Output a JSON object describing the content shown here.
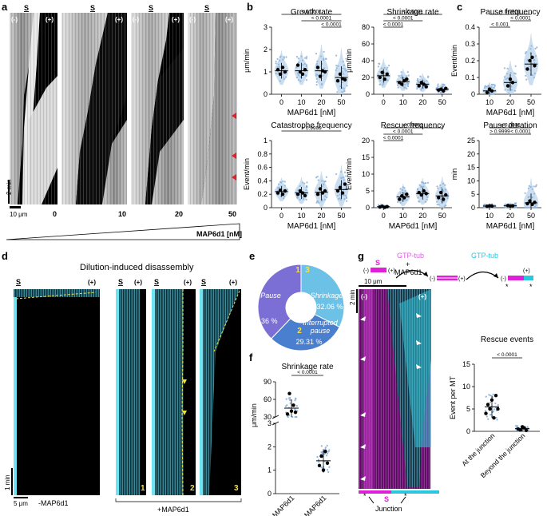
{
  "panel_labels": [
    "a",
    "b",
    "c",
    "d",
    "e",
    "f",
    "g"
  ],
  "panel_a": {
    "seed_label": "S",
    "minus_end": "(-)",
    "plus_end": "(+)",
    "time_scale": "2 min",
    "space_scale": "10 μm",
    "conditions": [
      "0",
      "10",
      "20",
      "50"
    ],
    "axis_label": "MAP6d1 [nM]"
  },
  "significance": {
    "p_small": "< 0.0001",
    "p_001": "< 0.001",
    "p_large": "> 0.9999"
  },
  "panel_d": {
    "title": "Dilution-induced disassembly",
    "seed_label": "S",
    "plus_end": "(+)",
    "time_scale": "1 min",
    "space_scale": "5 μm",
    "minus_label": "-MAP6d1",
    "plus_label": "+MAP6d1",
    "kymo_numbers": [
      "1",
      "2",
      "3"
    ]
  },
  "panel_e": {
    "slices": [
      {
        "name": "Pause",
        "number": "1",
        "value": 37.36,
        "label": "37.36 %",
        "color": "#7b6fd6"
      },
      {
        "name": "Shrinkage",
        "number": "3",
        "value": 32.06,
        "label": "32.06 %",
        "color": "#6cc2e6"
      },
      {
        "name": "Interrupted pause",
        "number": "2",
        "value": 29.31,
        "label": "29.31 %",
        "color": "#4a7fd0"
      }
    ]
  },
  "panel_g": {
    "gtp_tub_1": "GTP-tub",
    "plus_sign": "+",
    "map6d1": "MAP6d1",
    "gtp_tub_2": "GTP-tub",
    "minus_end": "(-)",
    "plus_end": "(+)",
    "seed_label": "S",
    "space_scale": "10 μm",
    "time_scale": "2 min",
    "junction": "Junction"
  },
  "chart_data": [
    {
      "id": "growth-rate",
      "type": "scatter",
      "title": "Growth rate",
      "ylabel": "μm/min",
      "xlabel": "MAP6d1 [nM]",
      "categories": [
        "0",
        "10",
        "20",
        "50"
      ],
      "ylim": [
        0,
        3
      ],
      "yticks": [
        0,
        1,
        2,
        3
      ],
      "means": [
        1.05,
        1.05,
        1.05,
        0.75
      ],
      "sd": [
        0.35,
        0.35,
        0.45,
        0.5
      ],
      "replicates": [
        [
          1.1,
          0.9,
          1.2,
          1.0
        ],
        [
          1.3,
          1.0,
          0.9,
          1.1
        ],
        [
          1.2,
          0.8,
          1.05,
          1.0
        ],
        [
          0.6,
          0.9,
          0.7,
          0.65
        ]
      ],
      "brackets": [
        {
          "from": 0,
          "to": 3,
          "level": 0,
          "label": "< 0.0001"
        },
        {
          "from": 1,
          "to": 3,
          "level": 1,
          "label": "< 0.0001"
        },
        {
          "from": 2,
          "to": 3,
          "level": 2,
          "label": "< 0.0001"
        }
      ]
    },
    {
      "id": "shrinkage-rate",
      "type": "scatter",
      "title": "Shrinkage rate",
      "ylabel": "μm/min",
      "xlabel": "MAP6d1 [nM]",
      "categories": [
        "0",
        "10",
        "20",
        "50"
      ],
      "ylim": [
        0,
        80
      ],
      "yticks": [
        0,
        20,
        40,
        60,
        80
      ],
      "means": [
        22,
        15,
        12,
        6
      ],
      "sd": [
        8,
        6,
        5,
        3
      ],
      "replicates": [
        [
          20,
          26,
          18,
          24
        ],
        [
          14,
          12,
          16,
          18
        ],
        [
          10,
          14,
          12,
          9
        ],
        [
          5,
          6,
          4,
          7
        ]
      ],
      "brackets": [
        {
          "from": 0,
          "to": 3,
          "level": 0,
          "label": "< 0.0001"
        },
        {
          "from": 0,
          "to": 2,
          "level": 1,
          "label": "< 0.0001"
        },
        {
          "from": 0,
          "to": 1,
          "level": 2,
          "label": "< 0.0001"
        }
      ]
    },
    {
      "id": "pause-frequency",
      "type": "scatter",
      "title": "Pause frequency",
      "ylabel": "Event/min",
      "xlabel": "MAP6d1 [nM]",
      "categories": [
        "10",
        "20",
        "50"
      ],
      "ylim": [
        0,
        0.4
      ],
      "yticks": [
        0,
        0.1,
        0.2,
        0.3,
        0.4
      ],
      "means": [
        0.02,
        0.07,
        0.18
      ],
      "sd": [
        0.02,
        0.05,
        0.07
      ],
      "replicates": [
        [
          0.01,
          0.03,
          0.02
        ],
        [
          0.05,
          0.09,
          0.07
        ],
        [
          0.15,
          0.2,
          0.22,
          0.17
        ]
      ],
      "brackets": [
        {
          "from": 0,
          "to": 2,
          "level": 0,
          "label": "< 0.0001"
        },
        {
          "from": 1,
          "to": 2,
          "level": 1,
          "label": "< 0.0001"
        },
        {
          "from": 0,
          "to": 1,
          "level": 2,
          "label": "< 0.001"
        }
      ]
    },
    {
      "id": "catastrophe-frequency",
      "type": "scatter",
      "title": "Catastrophe frequency",
      "ylabel": "Event/min",
      "xlabel": "MAP6d1 [nM]",
      "categories": [
        "0",
        "10",
        "20",
        "50"
      ],
      "ylim": [
        0,
        1.0
      ],
      "yticks": [
        0,
        0.2,
        0.4,
        0.6,
        0.8,
        1.0
      ],
      "means": [
        0.24,
        0.22,
        0.23,
        0.27
      ],
      "sd": [
        0.08,
        0.09,
        0.12,
        0.14
      ],
      "replicates": [
        [
          0.22,
          0.26,
          0.2,
          0.25
        ],
        [
          0.2,
          0.25,
          0.22,
          0.18
        ],
        [
          0.2,
          0.28,
          0.22,
          0.25
        ],
        [
          0.25,
          0.3,
          0.22,
          0.35
        ]
      ],
      "brackets": [
        {
          "from": 0,
          "to": 3,
          "level": 0,
          "label": "> 0.9999"
        }
      ]
    },
    {
      "id": "rescue-frequency",
      "type": "scatter",
      "title": "Rescue frequency",
      "ylabel": "Event/min",
      "xlabel": "MAP6d1 [nM]",
      "categories": [
        "0",
        "10",
        "20",
        "50"
      ],
      "ylim": [
        0,
        20
      ],
      "yticks": [
        0,
        5,
        10,
        15,
        20
      ],
      "means": [
        0.3,
        3.2,
        4.2,
        3.5
      ],
      "sd": [
        0.3,
        1.5,
        1.8,
        2.2
      ],
      "replicates": [
        [
          0.2,
          0.4,
          0.1,
          0.3
        ],
        [
          2.5,
          3.5,
          3.0,
          4.0
        ],
        [
          4.5,
          3.8,
          5.0,
          4.2
        ],
        [
          3.0,
          4.5,
          2.5,
          3.8
        ]
      ],
      "brackets": [
        {
          "from": 0,
          "to": 3,
          "level": 0,
          "label": "< 0.0001"
        },
        {
          "from": 0,
          "to": 2,
          "level": 1,
          "label": "< 0.0001"
        },
        {
          "from": 0,
          "to": 1,
          "level": 2,
          "label": "< 0.0001"
        }
      ]
    },
    {
      "id": "pause-duration",
      "type": "scatter",
      "title": "Pause duration",
      "ylabel": "min",
      "xlabel": "MAP6d1 [nM]",
      "categories": [
        "10",
        "20",
        "50"
      ],
      "ylim": [
        0,
        25
      ],
      "yticks": [
        0,
        5,
        10,
        15,
        20,
        25
      ],
      "means": [
        0.6,
        0.7,
        1.8
      ],
      "sd": [
        0.4,
        0.5,
        3.5
      ],
      "replicates": [
        [
          0.5,
          0.7,
          0.6
        ],
        [
          0.8,
          0.6,
          0.7
        ],
        [
          1.5,
          2.5,
          1.2,
          2.0
        ]
      ],
      "brackets": [
        {
          "from": 0,
          "to": 2,
          "level": 0,
          "label": "< 0.0001"
        },
        {
          "from": 0,
          "to": 1,
          "level": 1,
          "label": "> 0.9999"
        },
        {
          "from": 1,
          "to": 2,
          "level": 1,
          "label": "< 0.0001"
        }
      ]
    },
    {
      "id": "f-shrinkage-rate",
      "type": "scatter",
      "title": "Shrinkage rate",
      "ylabel": "μm/min",
      "categories": [
        "-MAP6d1",
        "+MAP6d1"
      ],
      "broken_axis": true,
      "yticks_top": [
        30,
        60,
        90
      ],
      "yticks_bottom": [
        0,
        1,
        2,
        3
      ],
      "means": [
        45,
        1.4
      ],
      "sd": [
        15,
        0.5
      ],
      "replicates": [
        [
          35,
          70,
          40,
          50,
          38
        ],
        [
          1.2,
          1.6,
          1.0,
          1.8,
          1.3
        ]
      ],
      "brackets": [
        {
          "from": 0,
          "to": 1,
          "level": 0,
          "label": "< 0.0001"
        }
      ]
    },
    {
      "id": "rescue-events",
      "type": "scatter",
      "title": "Rescue events",
      "ylabel": "Event per MT",
      "categories": [
        "At the junction",
        "Beyond the junction"
      ],
      "ylim": [
        0,
        15
      ],
      "yticks": [
        0,
        5,
        10,
        15
      ],
      "means": [
        5.5,
        0.6
      ],
      "sd": [
        2.5,
        0.6
      ],
      "replicates": [
        [
          4,
          6,
          5,
          7,
          3,
          8,
          5
        ],
        [
          0.5,
          0.3,
          1.0,
          0.8,
          0.2
        ]
      ],
      "brackets": [
        {
          "from": 0,
          "to": 1,
          "level": 0,
          "label": "< 0.0001"
        }
      ]
    }
  ]
}
